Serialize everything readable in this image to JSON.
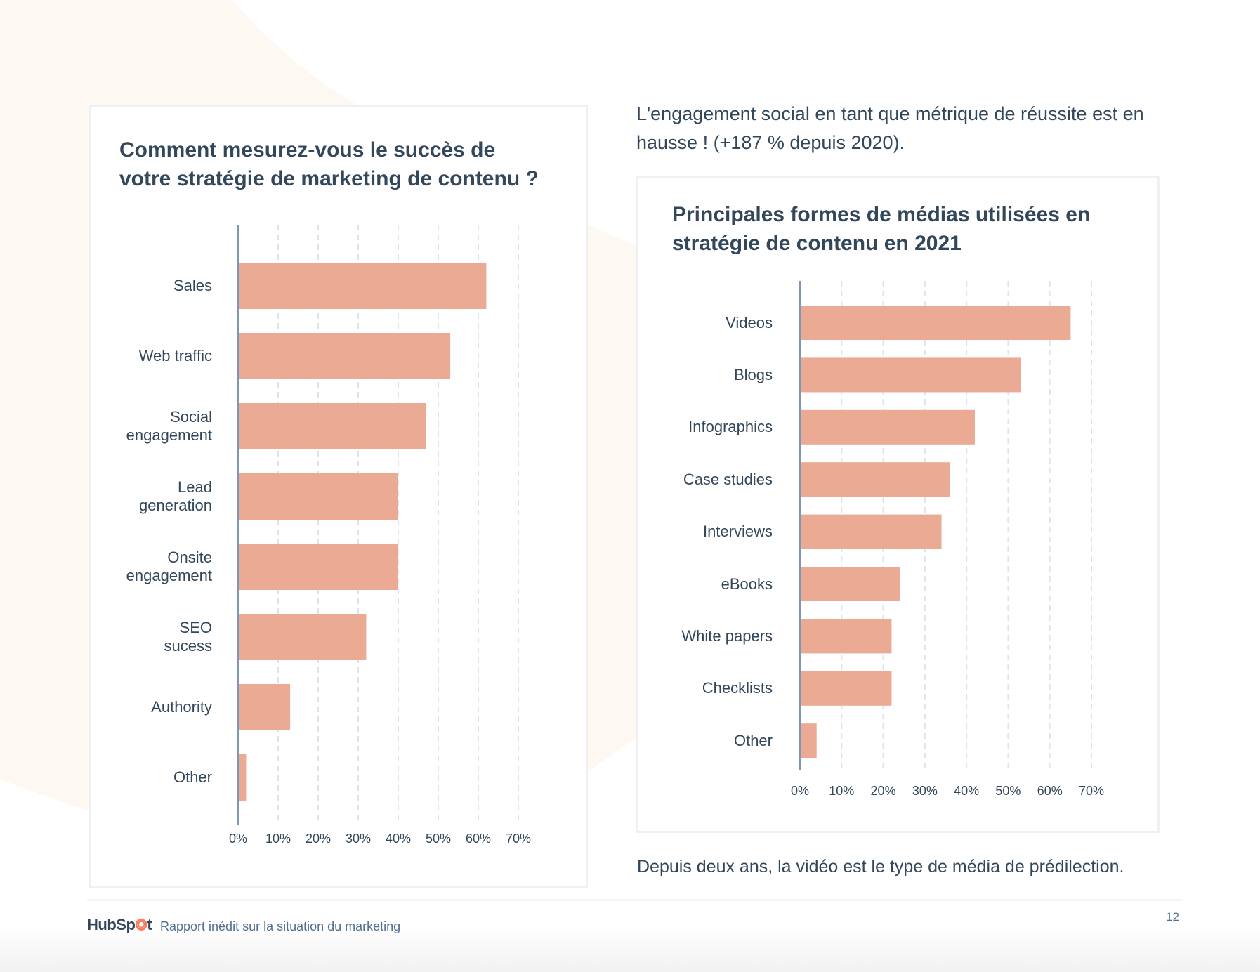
{
  "intro_text": "L'engagement social en tant que métrique de réussite est en hausse ! (+187 % depuis 2020).",
  "caption": "Depuis deux ans, la vidéo est le type de média de prédilection.",
  "footer": {
    "logo": "HubSpot",
    "text": "Rapport inédit sur la situation du marketing",
    "page_number": "12"
  },
  "colors": {
    "bar": "#ebaa94",
    "axis": "#7c98b6",
    "grid": "#dfe3eb",
    "text": "#33475b",
    "background_accent": "#fdf8f2"
  },
  "chart_data": [
    {
      "type": "bar",
      "orientation": "horizontal",
      "title": "Comment mesurez-vous le succès de votre stratégie de marketing de contenu ?",
      "categories": [
        "Sales",
        "Web traffic",
        "Social\nengagement",
        "Lead\ngeneration",
        "Onsite\nengagement",
        "SEO\nsucess",
        "Authority",
        "Other"
      ],
      "values": [
        62,
        53,
        47,
        40,
        40,
        32,
        13,
        2
      ],
      "unit": "%",
      "xlim": [
        0,
        70
      ],
      "xticks": [
        "0%",
        "10%",
        "20%",
        "30%",
        "40%",
        "50%",
        "60%",
        "70%"
      ],
      "grid": true
    },
    {
      "type": "bar",
      "orientation": "horizontal",
      "title": "Principales formes de médias utilisées en stratégie de contenu en 2021",
      "categories": [
        "Videos",
        "Blogs",
        "Infographics",
        "Case studies",
        "Interviews",
        "eBooks",
        "White papers",
        "Checklists",
        "Other"
      ],
      "values": [
        65,
        53,
        42,
        36,
        34,
        24,
        22,
        22,
        4
      ],
      "unit": "%",
      "xlim": [
        0,
        70
      ],
      "xticks": [
        "0%",
        "10%",
        "20%",
        "30%",
        "40%",
        "50%",
        "60%",
        "70%"
      ],
      "grid": true
    }
  ]
}
